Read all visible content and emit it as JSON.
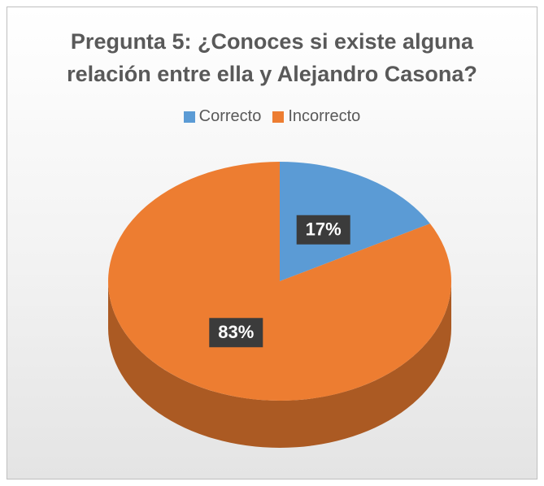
{
  "chart_data": {
    "type": "pie",
    "title": "Pregunta 5: ¿Conoces si existe alguna relación entre ella y Alejandro Casona?",
    "categories": [
      "Correcto",
      "Incorrecto"
    ],
    "values": [
      17,
      83
    ],
    "value_labels": [
      "17%",
      "83%"
    ],
    "colors": [
      "#5b9bd5",
      "#ed7d31"
    ],
    "legend": "top"
  }
}
